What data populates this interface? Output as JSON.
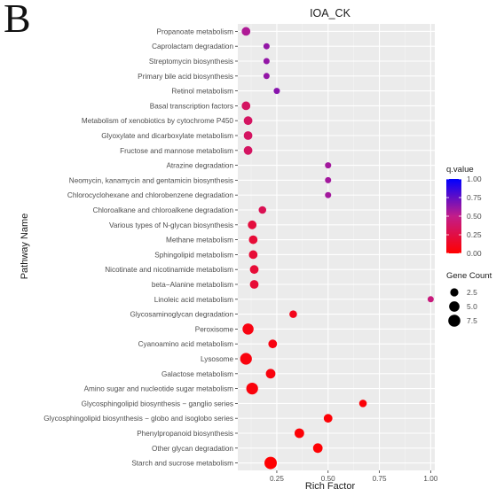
{
  "panel_letter": "B",
  "chart_data": {
    "type": "scatter",
    "title": "IOA_CK",
    "xlabel": "Rich Factor",
    "ylabel": "Pathway Name",
    "xlim": [
      0.06,
      1.02
    ],
    "x_ticks": [
      "0.25",
      "0.50",
      "0.75",
      "1.00"
    ],
    "grid": true,
    "legend_position": "right",
    "color_legend": {
      "title": "q.value",
      "ticks": [
        "1.00",
        "0.75",
        "0.50",
        "0.25",
        "0.00"
      ],
      "low_color": "#ff0000",
      "high_color": "#0000ff"
    },
    "size_legend": {
      "title": "Gene Count",
      "ticks": [
        "2.5",
        "5.0",
        "7.5"
      ]
    },
    "points": [
      {
        "pathway": "Propanoate metabolism",
        "rich_factor": 0.1,
        "gene_count": 3,
        "q_value": 0.55
      },
      {
        "pathway": "Caprolactam degradation",
        "rich_factor": 0.2,
        "gene_count": 1,
        "q_value": 0.62
      },
      {
        "pathway": "Streptomycin biosynthesis",
        "rich_factor": 0.2,
        "gene_count": 1,
        "q_value": 0.62
      },
      {
        "pathway": "Primary bile acid biosynthesis",
        "rich_factor": 0.2,
        "gene_count": 1,
        "q_value": 0.62
      },
      {
        "pathway": "Retinol metabolism",
        "rich_factor": 0.25,
        "gene_count": 1,
        "q_value": 0.65
      },
      {
        "pathway": "Basal transcription factors",
        "rich_factor": 0.1,
        "gene_count": 3,
        "q_value": 0.35
      },
      {
        "pathway": "Metabolism of xenobiotics by cytochrome P450",
        "rich_factor": 0.11,
        "gene_count": 3,
        "q_value": 0.35
      },
      {
        "pathway": "Glyoxylate and dicarboxylate metabolism",
        "rich_factor": 0.11,
        "gene_count": 3,
        "q_value": 0.35
      },
      {
        "pathway": "Fructose and mannose metabolism",
        "rich_factor": 0.11,
        "gene_count": 3,
        "q_value": 0.35
      },
      {
        "pathway": "Atrazine degradation",
        "rich_factor": 0.5,
        "gene_count": 1,
        "q_value": 0.58
      },
      {
        "pathway": "Neomycin, kanamycin and gentamicin biosynthesis",
        "rich_factor": 0.5,
        "gene_count": 1,
        "q_value": 0.58
      },
      {
        "pathway": "Chlorocyclohexane and chlorobenzene degradation",
        "rich_factor": 0.5,
        "gene_count": 1,
        "q_value": 0.58
      },
      {
        "pathway": "Chloroalkane and chloroalkene degradation",
        "rich_factor": 0.18,
        "gene_count": 2,
        "q_value": 0.3
      },
      {
        "pathway": "Various types of N-glycan biosynthesis",
        "rich_factor": 0.13,
        "gene_count": 3,
        "q_value": 0.22
      },
      {
        "pathway": "Methane metabolism",
        "rich_factor": 0.135,
        "gene_count": 3,
        "q_value": 0.2
      },
      {
        "pathway": "Sphingolipid metabolism",
        "rich_factor": 0.135,
        "gene_count": 3,
        "q_value": 0.2
      },
      {
        "pathway": "Nicotinate and nicotinamide metabolism",
        "rich_factor": 0.14,
        "gene_count": 3,
        "q_value": 0.2
      },
      {
        "pathway": "beta−Alanine metabolism",
        "rich_factor": 0.14,
        "gene_count": 3,
        "q_value": 0.2
      },
      {
        "pathway": "Linoleic acid metabolism",
        "rich_factor": 1.0,
        "gene_count": 1,
        "q_value": 0.45
      },
      {
        "pathway": "Glycosaminoglycan degradation",
        "rich_factor": 0.33,
        "gene_count": 2,
        "q_value": 0.1
      },
      {
        "pathway": "Peroxisome",
        "rich_factor": 0.11,
        "gene_count": 6,
        "q_value": 0.06
      },
      {
        "pathway": "Cyanoamino acid metabolism",
        "rich_factor": 0.23,
        "gene_count": 3,
        "q_value": 0.06
      },
      {
        "pathway": "Lysosome",
        "rich_factor": 0.1,
        "gene_count": 7,
        "q_value": 0.05
      },
      {
        "pathway": "Galactose metabolism",
        "rich_factor": 0.22,
        "gene_count": 4,
        "q_value": 0.05
      },
      {
        "pathway": "Amino sugar and nucleotide sugar metabolism",
        "rich_factor": 0.13,
        "gene_count": 7,
        "q_value": 0.04
      },
      {
        "pathway": "Glycosphingolipid biosynthesis − ganglio series",
        "rich_factor": 0.67,
        "gene_count": 2,
        "q_value": 0.03
      },
      {
        "pathway": "Glycosphingolipid biosynthesis − globo and isoglobo series",
        "rich_factor": 0.5,
        "gene_count": 3,
        "q_value": 0.02
      },
      {
        "pathway": "Phenylpropanoid biosynthesis",
        "rich_factor": 0.36,
        "gene_count": 4,
        "q_value": 0.02
      },
      {
        "pathway": "Other glycan degradation",
        "rich_factor": 0.45,
        "gene_count": 4,
        "q_value": 0.01
      },
      {
        "pathway": "Starch and sucrose metabolism",
        "rich_factor": 0.22,
        "gene_count": 8,
        "q_value": 0.005
      }
    ]
  }
}
